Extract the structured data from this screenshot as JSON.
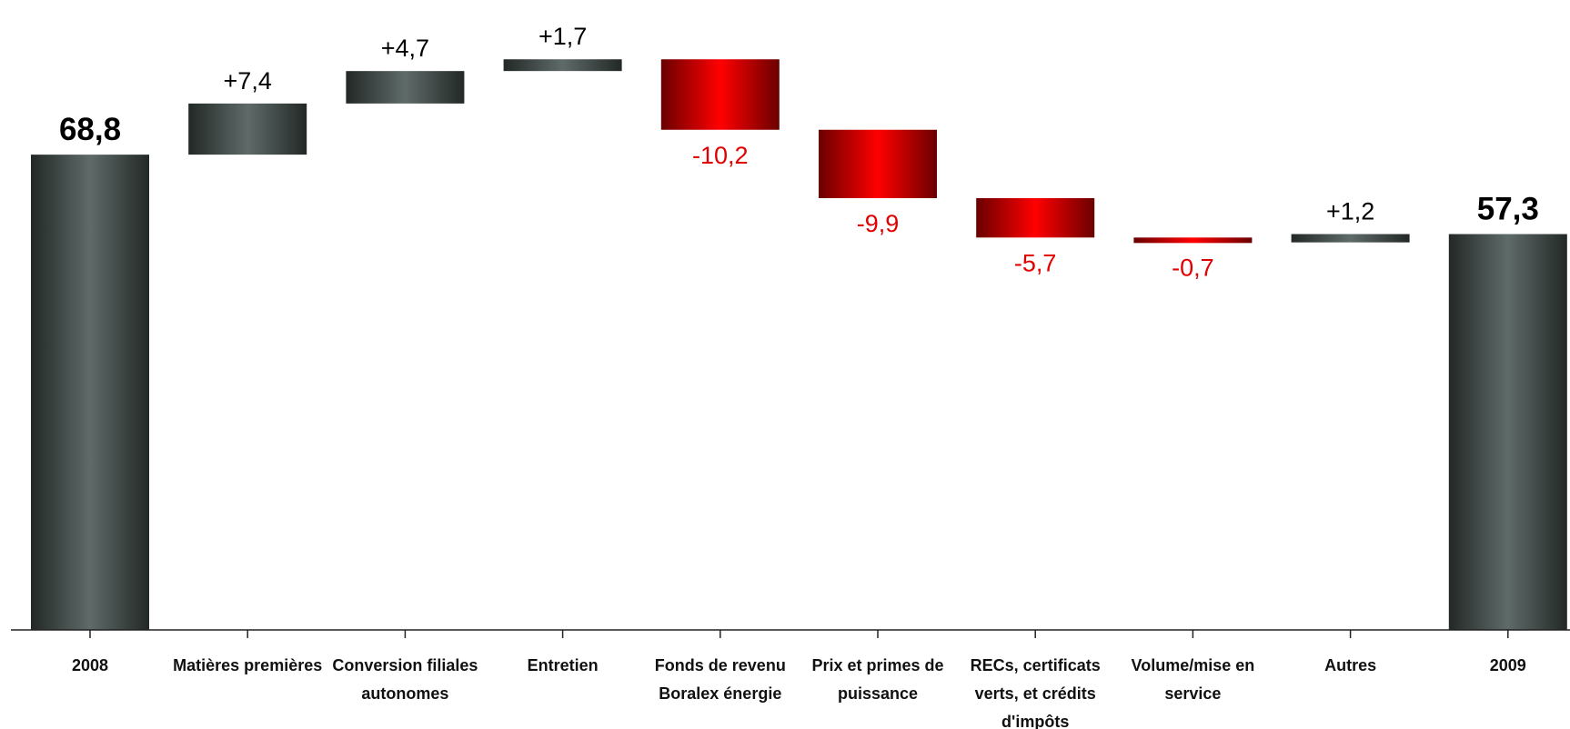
{
  "chart_data": {
    "type": "waterfall",
    "categories": [
      "2008",
      "Matières premières",
      "Conversion filiales autonomes",
      "Entretien",
      "Fonds de revenu Boralex énergie",
      "Prix et primes de puissance",
      "RECs, certificats verts, et crédits d'impôts",
      "Volume/mise en service",
      "Autres",
      "2009"
    ],
    "category_lines": [
      [
        "2008"
      ],
      [
        "Matières premières"
      ],
      [
        "Conversion filiales",
        "autonomes"
      ],
      [
        "Entretien"
      ],
      [
        "Fonds de revenu",
        "Boralex énergie"
      ],
      [
        "Prix et primes de",
        "puissance"
      ],
      [
        "RECs, certificats",
        "verts, et crédits",
        "d'impôts"
      ],
      [
        "Volume/mise en",
        "service"
      ],
      [
        "Autres"
      ],
      [
        "2009"
      ]
    ],
    "values": [
      68.8,
      7.4,
      4.7,
      1.7,
      -10.2,
      -9.9,
      -5.7,
      -0.7,
      1.2,
      57.3
    ],
    "kinds": [
      "total",
      "delta",
      "delta",
      "delta",
      "delta",
      "delta",
      "delta",
      "delta",
      "delta",
      "total"
    ],
    "data_labels": [
      "68,8",
      "+7,4",
      "+4,7",
      "+1,7",
      "-10,2",
      "-9,9",
      "-5,7",
      "-0,7",
      "+1,2",
      "57,3"
    ],
    "ylim": [
      0,
      82.6
    ],
    "grid": false,
    "legend": "none",
    "colors": {
      "total": "#4f5a58",
      "increase": "#4f5a58",
      "decrease": "#e00000",
      "positive_label": "#000000",
      "negative_label": "#e00000"
    }
  }
}
